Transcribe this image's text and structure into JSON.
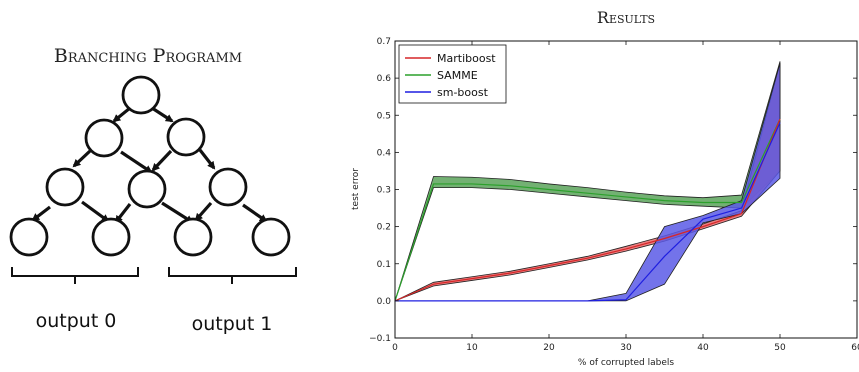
{
  "left_panel": {
    "title": "Branching Programm",
    "output_left": "output 0",
    "output_right": "output 1"
  },
  "chart_data": {
    "type": "line",
    "title": "Results",
    "xlabel": "% of corrupted labels",
    "ylabel": "test error",
    "xlim": [
      0,
      60
    ],
    "ylim": [
      -0.1,
      0.7
    ],
    "x_ticks": [
      "0",
      "10",
      "20",
      "30",
      "40",
      "50",
      "60"
    ],
    "y_ticks": [
      "−0.1",
      "0.0",
      "0.1",
      "0.2",
      "0.3",
      "0.4",
      "0.5",
      "0.6",
      "0.7"
    ],
    "x_tick_values": [
      0,
      10,
      20,
      30,
      40,
      50,
      60
    ],
    "y_tick_values": [
      -0.1,
      0.0,
      0.1,
      0.2,
      0.3,
      0.4,
      0.5,
      0.6,
      0.7
    ],
    "grid": false,
    "legend_position": "top-left",
    "x": [
      0,
      5,
      10,
      15,
      20,
      25,
      30,
      35,
      40,
      45,
      50
    ],
    "series": [
      {
        "name": "Martiboost",
        "color": "#d62728",
        "fill": "#e8696b",
        "values": [
          0.0,
          0.045,
          0.06,
          0.075,
          0.095,
          0.115,
          0.14,
          0.168,
          0.2,
          0.235,
          0.49
        ],
        "upper": [
          0.0,
          0.05,
          0.065,
          0.08,
          0.1,
          0.12,
          0.147,
          0.175,
          0.207,
          0.243,
          0.64
        ],
        "lower": [
          0.0,
          0.04,
          0.055,
          0.07,
          0.09,
          0.11,
          0.134,
          0.161,
          0.194,
          0.228,
          0.35
        ]
      },
      {
        "name": "SAMME",
        "color": "#2ca02c",
        "fill": "#5aa35a",
        "values": [
          0.0,
          0.315,
          0.315,
          0.31,
          0.3,
          0.29,
          0.28,
          0.27,
          0.265,
          0.265,
          0.49
        ],
        "upper": [
          0.0,
          0.335,
          0.333,
          0.327,
          0.315,
          0.305,
          0.293,
          0.283,
          0.278,
          0.285,
          0.645
        ],
        "lower": [
          0.0,
          0.305,
          0.305,
          0.3,
          0.29,
          0.28,
          0.27,
          0.26,
          0.255,
          0.25,
          0.35
        ]
      },
      {
        "name": "sm-boost",
        "color": "#1f1fe0",
        "fill": "#5a5ae6",
        "values": [
          0.0,
          0.0,
          0.0,
          0.0,
          0.0,
          0.0,
          0.003,
          0.12,
          0.22,
          0.25,
          0.48
        ],
        "upper": [
          0.0,
          0.0,
          0.0,
          0.0,
          0.0,
          0.0,
          0.02,
          0.2,
          0.23,
          0.27,
          0.64
        ],
        "lower": [
          0.0,
          0.0,
          0.0,
          0.0,
          0.0,
          0.0,
          0.0,
          0.045,
          0.21,
          0.235,
          0.33
        ]
      }
    ]
  }
}
